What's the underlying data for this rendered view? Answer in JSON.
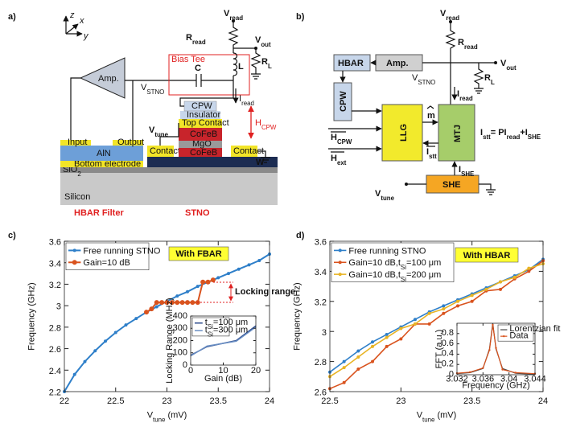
{
  "diagram_a": {
    "panel_label": "a)",
    "axis_x": "x",
    "axis_y": "y",
    "axis_z": "z",
    "v_read": [
      "V",
      "read"
    ],
    "r_read": [
      "R",
      "read"
    ],
    "v_out": [
      "V",
      "out"
    ],
    "r_l": [
      "R",
      "L"
    ],
    "l": "L",
    "c": "C",
    "bias_tee": "Bias Tee",
    "amp": "Amp.",
    "v_stno": [
      "V",
      "STNO"
    ],
    "i_read": [
      "I",
      "read"
    ],
    "h_cpw": [
      "H",
      "CPW"
    ],
    "cpw": "CPW",
    "insulator": "Insulator",
    "top_contact": "Top Contact",
    "cofeb_top": "CoFeB",
    "mgo": "MgO",
    "cofeb_bottom": "CoFeB",
    "w": "W",
    "contact_left": "Contact",
    "contact_right": "Contact",
    "v_tune": [
      "V",
      "tune"
    ],
    "input": "Input",
    "output": "Output",
    "aln": "AlN",
    "bottom_electrode": "Bottom electrode",
    "sio2": [
      "SiO",
      "2"
    ],
    "silicon": "Silicon",
    "hbar_filter": "HBAR Filter",
    "stno": "STNO"
  },
  "diagram_b": {
    "panel_label": "b)",
    "v_read": [
      "V",
      "read"
    ],
    "r_read": [
      "R",
      "read"
    ],
    "v_out": [
      "V",
      "out"
    ],
    "r_l": [
      "R",
      "L"
    ],
    "hbar": "HBAR",
    "amp": "Amp.",
    "v_stno": [
      "V",
      "STNO"
    ],
    "i_read": [
      "I",
      "read"
    ],
    "cpw": "CPW",
    "llg": "LLG",
    "mtj": "MTJ",
    "m": "m",
    "h_cpw": [
      "H",
      "CPW"
    ],
    "h_ext": [
      "H",
      "ext"
    ],
    "i_stt": [
      "I",
      "stt"
    ],
    "equation": [
      "I",
      "stt",
      "= PI",
      "read",
      "+I",
      "SHE"
    ],
    "she": "SHE",
    "i_she": [
      "I",
      "SHE"
    ],
    "v_tune": [
      "V",
      "tune"
    ]
  },
  "chart_data": [
    {
      "type": "line",
      "panel_label": "c)",
      "x_label": [
        "V",
        "tune",
        " (mV)"
      ],
      "y_label": "Frequency (GHz)",
      "xlim": [
        22,
        24
      ],
      "xticks": [
        22,
        22.5,
        23,
        23.5,
        24
      ],
      "ylim": [
        2.2,
        3.6
      ],
      "yticks": [
        2.2,
        2.4,
        2.6,
        2.8,
        3,
        3.2,
        3.4,
        3.6
      ],
      "legend": "upper left",
      "annotations": [
        "With FBAR",
        "Locking range"
      ],
      "series": [
        {
          "name": "Free running STNO",
          "color": "#2e7fc9",
          "x": [
            22,
            22.1,
            22.2,
            22.3,
            22.4,
            22.5,
            22.6,
            22.7,
            22.8,
            22.9,
            23,
            23.1,
            23.2,
            23.3,
            23.4,
            23.5,
            23.6,
            23.7,
            23.8,
            23.9,
            24
          ],
          "values": [
            2.2,
            2.36,
            2.48,
            2.58,
            2.67,
            2.75,
            2.82,
            2.88,
            2.94,
            2.99,
            3.04,
            3.09,
            3.13,
            3.18,
            3.22,
            3.26,
            3.3,
            3.34,
            3.38,
            3.42,
            3.48
          ]
        },
        {
          "name": "Gain=10 dB",
          "color": "#d9531e",
          "x": [
            22.8,
            22.85,
            22.9,
            22.95,
            23,
            23.05,
            23.1,
            23.15,
            23.2,
            23.25,
            23.3,
            23.35,
            23.4,
            23.45
          ],
          "values": [
            2.94,
            2.97,
            3.03,
            3.03,
            3.03,
            3.03,
            3.03,
            3.03,
            3.03,
            3.03,
            3.03,
            3.22,
            3.22,
            3.24
          ]
        }
      ]
    },
    {
      "type": "line",
      "x_label": "Gain (dB)",
      "y_label": "Locking Range (MHz)",
      "xlim": [
        0,
        20
      ],
      "xticks": [
        0,
        10,
        20
      ],
      "ylim": [
        0,
        400
      ],
      "yticks": [
        0,
        100,
        200,
        300,
        400
      ],
      "legend": "upper left",
      "series": [
        {
          "name": [
            "t",
            "Si",
            "=100 μm"
          ],
          "color": "#2c4a8c",
          "x": [
            0,
            5,
            14,
            20
          ],
          "values": [
            80,
            150,
            200,
            320
          ]
        },
        {
          "name": [
            "t",
            "Si",
            "=300 μm"
          ],
          "color": "#6a8fc4",
          "x": [
            0,
            5,
            14,
            20
          ],
          "values": [
            75,
            155,
            195,
            310
          ]
        }
      ]
    },
    {
      "type": "line",
      "panel_label": "d)",
      "x_label": [
        "V",
        "tune",
        " (mV)"
      ],
      "y_label": "Frequency (GHz)",
      "xlim": [
        22.5,
        24
      ],
      "xticks": [
        22.5,
        23,
        23.5,
        24
      ],
      "ylim": [
        2.6,
        3.6
      ],
      "yticks": [
        2.6,
        2.8,
        3,
        3.2,
        3.4,
        3.6
      ],
      "legend": "upper left",
      "annotations": [
        "With HBAR"
      ],
      "series": [
        {
          "name": "Free running STNO",
          "color": "#2e7fc9",
          "x": [
            22.5,
            22.6,
            22.7,
            22.8,
            22.9,
            23,
            23.1,
            23.2,
            23.3,
            23.4,
            23.5,
            23.6,
            23.7,
            23.8,
            23.9,
            24
          ],
          "values": [
            2.73,
            2.8,
            2.87,
            2.93,
            2.98,
            3.03,
            3.08,
            3.13,
            3.17,
            3.21,
            3.25,
            3.29,
            3.33,
            3.37,
            3.41,
            3.48
          ]
        },
        {
          "name": [
            "Gain=10 dB,t",
            "Si",
            "=100 μm"
          ],
          "color": "#d9531e",
          "x": [
            22.5,
            22.6,
            22.7,
            22.8,
            22.9,
            23,
            23.1,
            23.2,
            23.3,
            23.4,
            23.5,
            23.6,
            23.7,
            23.8,
            23.9,
            24
          ],
          "values": [
            2.62,
            2.66,
            2.75,
            2.8,
            2.9,
            2.95,
            3.05,
            3.05,
            3.12,
            3.17,
            3.2,
            3.27,
            3.28,
            3.35,
            3.4,
            3.47
          ]
        },
        {
          "name": [
            "Gain=10 dB,t",
            "Si",
            "=200 μm"
          ],
          "color": "#e8b425",
          "x": [
            22.5,
            22.6,
            22.7,
            22.8,
            22.9,
            23,
            23.1,
            23.2,
            23.3,
            23.4,
            23.5,
            23.6,
            23.7,
            23.8,
            23.9,
            24
          ],
          "values": [
            2.7,
            2.76,
            2.83,
            2.9,
            2.96,
            3.02,
            3.05,
            3.12,
            3.15,
            3.2,
            3.24,
            3.28,
            3.33,
            3.36,
            3.42,
            3.45
          ]
        }
      ]
    },
    {
      "type": "line",
      "x_label": "Frequency (GHz)",
      "y_label": "FFT (a.u.)",
      "xlim": [
        3.032,
        3.044
      ],
      "xticks": [
        3.032,
        3.036,
        3.04,
        3.044
      ],
      "ylim": [
        0,
        1
      ],
      "yticks": [
        0,
        0.2,
        0.4,
        0.6,
        0.8
      ],
      "legend": "upper right",
      "series": [
        {
          "name": "Lorentzian fit",
          "color": "#444444",
          "x": [
            3.032,
            3.034,
            3.036,
            3.037,
            3.0375,
            3.038,
            3.039,
            3.041,
            3.044
          ],
          "values": [
            0.02,
            0.04,
            0.12,
            0.5,
            1,
            0.5,
            0.12,
            0.03,
            0.01
          ]
        },
        {
          "name": "Data",
          "color": "#d9531e",
          "x": [
            3.032,
            3.034,
            3.036,
            3.037,
            3.0375,
            3.038,
            3.039,
            3.041,
            3.044
          ],
          "values": [
            0.03,
            0.05,
            0.13,
            0.48,
            0.97,
            0.52,
            0.1,
            0.04,
            0.02
          ]
        }
      ]
    }
  ]
}
